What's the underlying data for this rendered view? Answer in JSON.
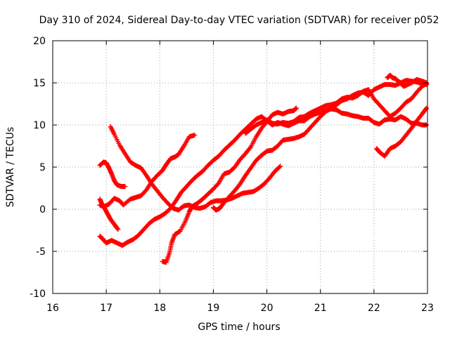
{
  "chart_data": {
    "type": "scatter",
    "title": "Day 310 of 2024, Sidereal Day-to-day VTEC variation (SDTVAR) for receiver p052",
    "xlabel": "GPS time / hours",
    "ylabel": "SDTVAR / TECUs",
    "xlim": [
      16,
      23
    ],
    "ylim": [
      -10,
      20
    ],
    "xticks": [
      "16",
      "17",
      "18",
      "19",
      "20",
      "21",
      "22",
      "23"
    ],
    "yticks": [
      "-10",
      "-5",
      "0",
      "5",
      "10",
      "15",
      "20"
    ],
    "grid": true,
    "marker": "cross",
    "colors": {
      "series": "#ff0000",
      "grid": "#a0a0a0",
      "axes": "#000000"
    },
    "series": [
      {
        "points": [
          [
            16.88,
            5.2
          ],
          [
            16.95,
            5.6
          ],
          [
            17.0,
            5.5
          ],
          [
            17.05,
            4.9
          ],
          [
            17.1,
            4.2
          ],
          [
            17.15,
            3.4
          ],
          [
            17.2,
            2.9
          ],
          [
            17.28,
            2.7
          ],
          [
            17.35,
            2.7
          ]
        ]
      },
      {
        "points": [
          [
            17.08,
            9.8
          ],
          [
            17.15,
            8.9
          ],
          [
            17.25,
            7.6
          ],
          [
            17.35,
            6.6
          ],
          [
            17.45,
            5.6
          ],
          [
            17.55,
            5.2
          ],
          [
            17.65,
            4.9
          ],
          [
            17.75,
            4.0
          ],
          [
            17.85,
            3.0
          ],
          [
            17.95,
            2.2
          ],
          [
            18.05,
            1.4
          ],
          [
            18.15,
            0.7
          ],
          [
            18.25,
            0.1
          ],
          [
            18.35,
            -0.1
          ],
          [
            18.45,
            0.4
          ],
          [
            18.55,
            0.5
          ],
          [
            18.65,
            0.2
          ],
          [
            18.75,
            0.1
          ],
          [
            18.85,
            0.3
          ],
          [
            18.95,
            0.8
          ],
          [
            19.05,
            1.0
          ],
          [
            19.15,
            1.0
          ],
          [
            19.25,
            1.1
          ],
          [
            19.35,
            1.3
          ],
          [
            19.45,
            1.6
          ],
          [
            19.55,
            1.9
          ],
          [
            19.65,
            2.0
          ],
          [
            19.75,
            2.1
          ],
          [
            19.85,
            2.5
          ],
          [
            19.95,
            3.0
          ],
          [
            20.05,
            3.7
          ],
          [
            20.15,
            4.5
          ],
          [
            20.25,
            5.1
          ]
        ]
      },
      {
        "points": [
          [
            16.88,
            1.2
          ],
          [
            16.92,
            0.6
          ],
          [
            16.97,
            0.1
          ],
          [
            17.02,
            -0.5
          ],
          [
            17.08,
            -1.2
          ],
          [
            17.15,
            -1.8
          ],
          [
            17.22,
            -2.4
          ]
        ]
      },
      {
        "points": [
          [
            16.88,
            0.5
          ],
          [
            16.95,
            0.3
          ],
          [
            17.05,
            0.6
          ],
          [
            17.15,
            1.3
          ],
          [
            17.25,
            1.0
          ],
          [
            17.32,
            0.5
          ],
          [
            17.45,
            1.2
          ],
          [
            17.55,
            1.4
          ],
          [
            17.65,
            1.6
          ],
          [
            17.75,
            2.3
          ],
          [
            17.85,
            3.3
          ],
          [
            17.95,
            4.0
          ],
          [
            18.05,
            4.6
          ],
          [
            18.12,
            5.3
          ],
          [
            18.2,
            6.0
          ],
          [
            18.28,
            6.2
          ],
          [
            18.35,
            6.5
          ],
          [
            18.45,
            7.5
          ],
          [
            18.55,
            8.6
          ],
          [
            18.65,
            8.8
          ]
        ]
      },
      {
        "points": [
          [
            16.88,
            -3.2
          ],
          [
            16.93,
            -3.5
          ],
          [
            17.0,
            -4.0
          ],
          [
            17.1,
            -3.7
          ],
          [
            17.2,
            -4.0
          ],
          [
            17.3,
            -4.3
          ],
          [
            17.4,
            -3.9
          ],
          [
            17.5,
            -3.6
          ],
          [
            17.6,
            -3.1
          ],
          [
            17.7,
            -2.4
          ],
          [
            17.8,
            -1.7
          ],
          [
            17.9,
            -1.2
          ],
          [
            18.0,
            -0.9
          ],
          [
            18.1,
            -0.5
          ],
          [
            18.2,
            0.1
          ],
          [
            18.3,
            1.0
          ],
          [
            18.4,
            2.0
          ],
          [
            18.5,
            2.7
          ],
          [
            18.6,
            3.4
          ],
          [
            18.7,
            4.0
          ],
          [
            18.8,
            4.5
          ],
          [
            18.9,
            5.2
          ],
          [
            19.0,
            5.8
          ],
          [
            19.1,
            6.3
          ],
          [
            19.2,
            7.0
          ],
          [
            19.3,
            7.6
          ],
          [
            19.4,
            8.2
          ],
          [
            19.5,
            8.9
          ],
          [
            19.6,
            9.5
          ],
          [
            19.7,
            10.1
          ],
          [
            19.8,
            10.7
          ],
          [
            19.9,
            11.0
          ],
          [
            20.0,
            10.5
          ],
          [
            20.1,
            10.0
          ],
          [
            20.2,
            10.3
          ],
          [
            20.3,
            10.1
          ],
          [
            20.4,
            9.9
          ],
          [
            20.5,
            10.2
          ],
          [
            20.6,
            10.5
          ],
          [
            20.7,
            10.5
          ],
          [
            20.8,
            11.0
          ],
          [
            20.9,
            11.3
          ],
          [
            21.0,
            11.5
          ],
          [
            21.1,
            11.7
          ],
          [
            21.2,
            11.9
          ],
          [
            21.3,
            11.8
          ],
          [
            21.4,
            11.4
          ],
          [
            21.5,
            11.3
          ],
          [
            21.6,
            11.1
          ],
          [
            21.7,
            11.0
          ],
          [
            21.8,
            10.8
          ],
          [
            21.9,
            10.8
          ],
          [
            22.0,
            10.3
          ],
          [
            22.1,
            10.1
          ],
          [
            22.2,
            10.6
          ],
          [
            22.3,
            10.7
          ],
          [
            22.4,
            10.6
          ],
          [
            22.5,
            11.0
          ],
          [
            22.6,
            10.7
          ],
          [
            22.7,
            10.2
          ],
          [
            22.8,
            10.2
          ],
          [
            22.9,
            10.0
          ],
          [
            22.98,
            10.0
          ]
        ]
      },
      {
        "points": [
          [
            18.05,
            -6.2
          ],
          [
            18.12,
            -6.3
          ],
          [
            18.18,
            -5.2
          ],
          [
            18.22,
            -4.0
          ],
          [
            18.28,
            -3.0
          ],
          [
            18.38,
            -2.6
          ],
          [
            18.48,
            -1.4
          ],
          [
            18.55,
            -0.3
          ],
          [
            18.6,
            0.3
          ],
          [
            18.7,
            0.7
          ],
          [
            18.8,
            1.2
          ],
          [
            18.9,
            1.8
          ],
          [
            19.0,
            2.4
          ],
          [
            19.1,
            3.1
          ],
          [
            19.2,
            4.2
          ],
          [
            19.3,
            4.4
          ],
          [
            19.4,
            5.0
          ],
          [
            19.5,
            5.9
          ],
          [
            19.6,
            6.6
          ],
          [
            19.7,
            7.4
          ],
          [
            19.8,
            8.6
          ],
          [
            19.9,
            9.6
          ],
          [
            20.0,
            10.4
          ],
          [
            20.1,
            11.2
          ],
          [
            20.2,
            11.5
          ],
          [
            20.3,
            11.3
          ],
          [
            20.4,
            11.6
          ],
          [
            20.5,
            11.7
          ],
          [
            20.55,
            12.0
          ]
        ]
      },
      {
        "points": [
          [
            19.0,
            0.2
          ],
          [
            19.05,
            -0.1
          ],
          [
            19.12,
            0.1
          ],
          [
            19.2,
            0.8
          ],
          [
            19.3,
            1.5
          ],
          [
            19.4,
            2.2
          ],
          [
            19.5,
            3.0
          ],
          [
            19.6,
            4.0
          ],
          [
            19.7,
            4.9
          ],
          [
            19.8,
            5.8
          ],
          [
            19.9,
            6.4
          ],
          [
            20.0,
            6.9
          ],
          [
            20.1,
            7.0
          ],
          [
            20.2,
            7.5
          ],
          [
            20.3,
            8.2
          ],
          [
            20.4,
            8.3
          ],
          [
            20.5,
            8.4
          ],
          [
            20.6,
            8.6
          ],
          [
            20.7,
            8.9
          ],
          [
            20.8,
            9.6
          ],
          [
            20.9,
            10.3
          ],
          [
            21.0,
            11.0
          ],
          [
            21.1,
            11.6
          ],
          [
            21.2,
            12.0
          ],
          [
            21.3,
            12.4
          ],
          [
            21.4,
            12.9
          ],
          [
            21.5,
            13.1
          ],
          [
            21.6,
            13.5
          ],
          [
            21.7,
            13.8
          ],
          [
            21.8,
            13.9
          ],
          [
            21.9,
            13.5
          ],
          [
            22.0,
            14.2
          ],
          [
            22.1,
            14.5
          ],
          [
            22.2,
            14.8
          ],
          [
            22.3,
            14.8
          ],
          [
            22.4,
            14.7
          ],
          [
            22.5,
            15.0
          ],
          [
            22.6,
            15.3
          ],
          [
            22.7,
            15.2
          ],
          [
            22.8,
            15.1
          ],
          [
            22.9,
            14.9
          ],
          [
            22.98,
            14.8
          ]
        ]
      },
      {
        "points": [
          [
            19.6,
            9.0
          ],
          [
            19.7,
            9.5
          ],
          [
            19.8,
            10.0
          ],
          [
            19.9,
            10.3
          ],
          [
            20.0,
            10.6
          ],
          [
            20.1,
            10.2
          ],
          [
            20.2,
            10.1
          ],
          [
            20.3,
            10.3
          ],
          [
            20.4,
            10.2
          ],
          [
            20.5,
            10.4
          ],
          [
            20.6,
            10.9
          ],
          [
            20.7,
            11.0
          ],
          [
            20.8,
            11.4
          ],
          [
            20.9,
            11.7
          ],
          [
            21.0,
            12.0
          ],
          [
            21.1,
            12.3
          ],
          [
            21.2,
            12.4
          ],
          [
            21.3,
            12.6
          ],
          [
            21.4,
            13.1
          ],
          [
            21.5,
            13.3
          ],
          [
            21.6,
            13.2
          ],
          [
            21.7,
            13.5
          ],
          [
            21.8,
            14.0
          ],
          [
            21.9,
            14.2
          ],
          [
            22.0,
            13.1
          ],
          [
            22.1,
            12.4
          ],
          [
            22.2,
            11.7
          ],
          [
            22.3,
            11.0
          ],
          [
            22.4,
            11.4
          ],
          [
            22.5,
            12.0
          ],
          [
            22.6,
            12.7
          ],
          [
            22.7,
            13.1
          ],
          [
            22.8,
            13.9
          ],
          [
            22.9,
            14.6
          ],
          [
            22.98,
            14.9
          ]
        ]
      },
      {
        "points": [
          [
            22.25,
            15.6
          ],
          [
            22.3,
            15.9
          ],
          [
            22.35,
            15.6
          ],
          [
            22.4,
            15.5
          ],
          [
            22.45,
            15.2
          ],
          [
            22.5,
            15.0
          ],
          [
            22.55,
            14.6
          ],
          [
            22.6,
            14.7
          ],
          [
            22.7,
            15.0
          ],
          [
            22.8,
            15.4
          ],
          [
            22.9,
            15.2
          ],
          [
            22.98,
            15.0
          ]
        ]
      },
      {
        "points": [
          [
            22.05,
            7.2
          ],
          [
            22.1,
            6.8
          ],
          [
            22.2,
            6.3
          ],
          [
            22.3,
            7.2
          ],
          [
            22.4,
            7.5
          ],
          [
            22.5,
            8.0
          ],
          [
            22.6,
            8.8
          ],
          [
            22.7,
            9.6
          ],
          [
            22.8,
            10.5
          ],
          [
            22.9,
            11.3
          ],
          [
            22.98,
            12.0
          ]
        ]
      }
    ]
  }
}
